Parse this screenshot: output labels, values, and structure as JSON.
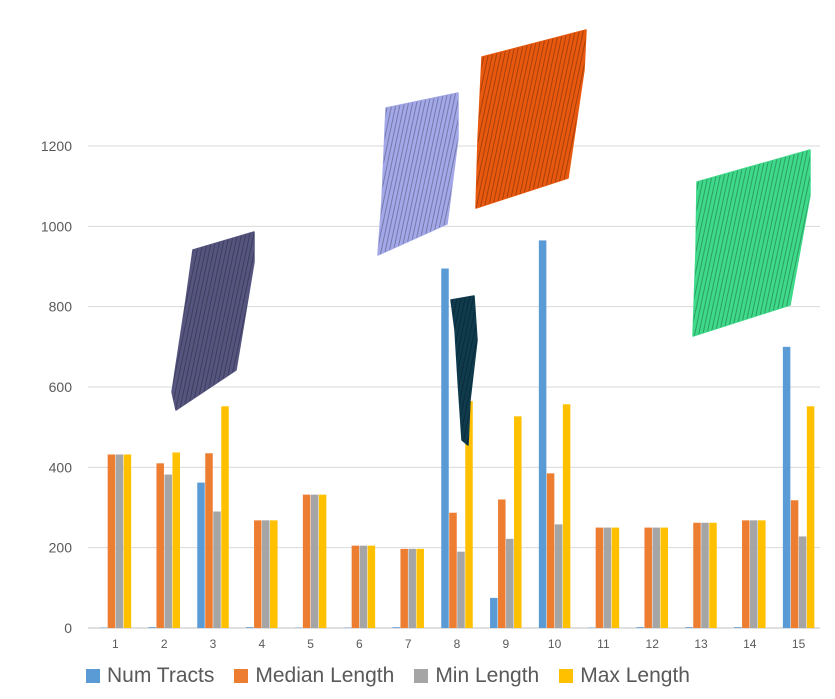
{
  "chart_data": {
    "type": "bar",
    "categories": [
      "1",
      "2",
      "3",
      "4",
      "5",
      "6",
      "7",
      "8",
      "9",
      "10",
      "11",
      "12",
      "13",
      "14",
      "15"
    ],
    "series": [
      {
        "name": "Num Tracts",
        "color": "#5B9BD5",
        "values": [
          1,
          2,
          362,
          2,
          1,
          1,
          2,
          895,
          75,
          965,
          1,
          2,
          2,
          2,
          700
        ]
      },
      {
        "name": "Median Length",
        "color": "#ED7D31",
        "values": [
          432,
          410,
          435,
          268,
          332,
          205,
          197,
          287,
          320,
          385,
          250,
          250,
          262,
          268,
          318
        ]
      },
      {
        "name": "Min Length",
        "color": "#A5A5A5",
        "values": [
          432,
          382,
          290,
          268,
          332,
          205,
          197,
          190,
          222,
          258,
          250,
          250,
          262,
          268,
          228
        ]
      },
      {
        "name": "Max Length",
        "color": "#FFC000",
        "values": [
          432,
          437,
          552,
          268,
          332,
          205,
          197,
          565,
          527,
          557,
          250,
          250,
          262,
          268,
          552
        ]
      }
    ],
    "ylim": [
      0,
      1200
    ],
    "yticks": [
      0,
      200,
      400,
      600,
      800,
      1000,
      1200
    ],
    "grid": true,
    "legend_position": "bottom",
    "title": "",
    "xlabel": "",
    "ylabel": "",
    "images": [
      {
        "name": "fiber-bundle-dark-slate",
        "color": "#55557f"
      },
      {
        "name": "fiber-bundle-lavender",
        "color": "#a3a8e8"
      },
      {
        "name": "fiber-bundle-dark-teal",
        "color": "#0f3b4d"
      },
      {
        "name": "fiber-bundle-orange",
        "color": "#e8590f"
      },
      {
        "name": "fiber-bundle-green",
        "color": "#3fd98a"
      }
    ]
  }
}
